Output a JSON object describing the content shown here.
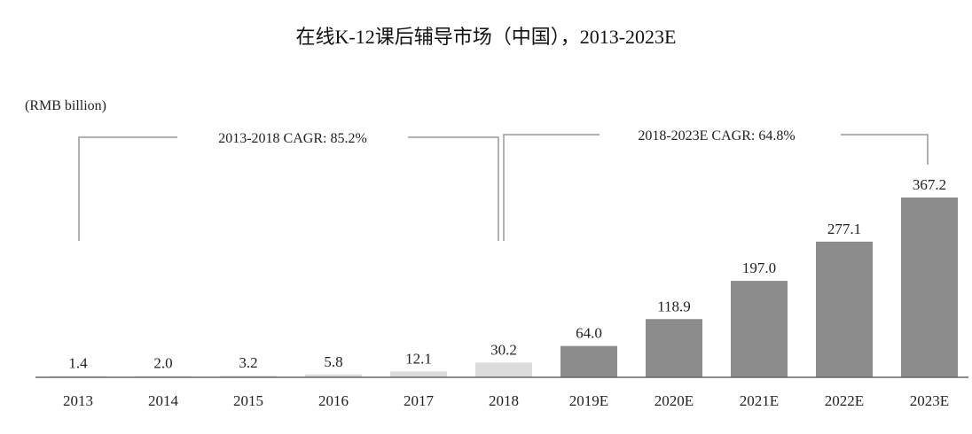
{
  "chart_data": {
    "type": "bar",
    "title": "在线K-12课后辅导市场（中国），2013-2023E",
    "ylabel": "(RMB billion)",
    "categories": [
      "2013",
      "2014",
      "2015",
      "2016",
      "2017",
      "2018",
      "2019E",
      "2020E",
      "2021E",
      "2022E",
      "2023E"
    ],
    "values": [
      1.4,
      2.0,
      3.2,
      5.8,
      12.1,
      30.2,
      64.0,
      118.9,
      197.0,
      277.1,
      367.2
    ],
    "value_labels": [
      "1.4",
      "2.0",
      "3.2",
      "5.8",
      "12.1",
      "30.2",
      "64.0",
      "118.9",
      "197.0",
      "277.1",
      "367.2"
    ],
    "ylim": [
      0,
      367.2
    ],
    "grid": false,
    "colors": {
      "historical": "#dcdcdc",
      "forecast": "#8c8c8c",
      "axis": "#666666",
      "bracket": "#999999"
    },
    "annotations": [
      {
        "text": "2013-2018 CAGR: 85.2%",
        "from": "2013",
        "to": "2018"
      },
      {
        "text": "2018-2023E CAGR: 64.8%",
        "from": "2018",
        "to": "2023E"
      }
    ]
  }
}
